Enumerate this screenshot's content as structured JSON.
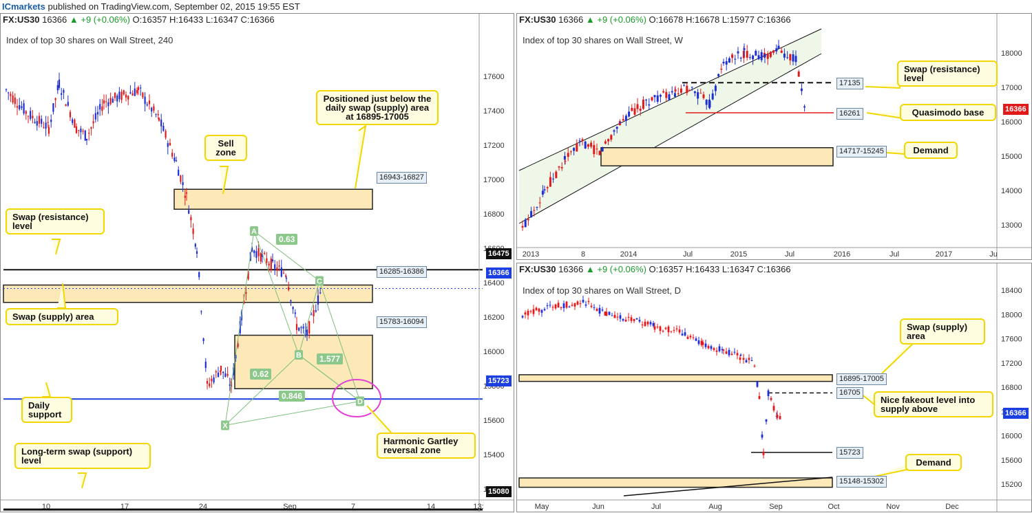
{
  "header": {
    "brand": "ICmarkets",
    "text": "published on TradingView.com, September 02, 2015 19:55 EST"
  },
  "colors": {
    "bull": "#1c2ed6",
    "bear": "#e01a1a",
    "zone_fill": "#fde8b7",
    "note_border": "#f2d600",
    "accent_blue": "#1b3fe0"
  },
  "panels": {
    "h4": {
      "symbol": "FX:US30",
      "price": "16366",
      "change": "▲ +9 (+0.06%)",
      "o": "O:16357",
      "h": "H:16433",
      "l": "L:16347",
      "c": "C:16366",
      "title": "Index of top 30 shares on Wall Street, 240",
      "y_ticks": [
        "17600",
        "17400",
        "17200",
        "17000",
        "16800",
        "16600",
        "16400",
        "16200",
        "16000",
        "15800",
        "15600",
        "15400",
        "15200"
      ],
      "x_ticks": [
        "10",
        "17",
        "24",
        "Sep",
        "7",
        "14",
        "13:"
      ],
      "level_tags": {
        "l16475": "16475",
        "l16366": "16366",
        "l15723": "15723",
        "l15080": "15080"
      },
      "zone_labels": {
        "z1": "16943-16827",
        "z2": "16285-16386",
        "z3": "15783-16094"
      },
      "pattern_points": [
        "X",
        "A",
        "B",
        "C",
        "D"
      ],
      "fib_labels": {
        "f1": "1.577",
        "f2": "0.62",
        "f3": "0.846",
        "f4": "0.63"
      },
      "notes": {
        "n1": "Positioned just below the daily swap (supply) area at 16895-17005",
        "n2": "Sell zone",
        "n3": "Swap (resistance) level",
        "n4": "Swap (supply) area",
        "n5": "Daily support",
        "n6": "Harmonic Gartley reversal zone",
        "n7": "Long-term swap (support) level"
      }
    },
    "weekly": {
      "symbol": "FX:US30",
      "price": "16366",
      "change": "▲ +9 (+0.06%)",
      "o": "O:16678",
      "h": "H:16678",
      "l": "L:15977",
      "c": "C:16366",
      "title": "Index of top 30 shares on Wall Street, W",
      "y_ticks": [
        "18000",
        "17000",
        "16000",
        "15000",
        "14000",
        "13000"
      ],
      "x_ticks": [
        "2013",
        "8",
        "2014",
        "Jul",
        "2015",
        "Jul",
        "2016",
        "Jul",
        "2017",
        "Ju"
      ],
      "level_tags": {
        "price": "16366"
      },
      "labels": {
        "l1": "17135",
        "l2": "16261",
        "l3": "14717-15245"
      },
      "notes": {
        "n1": "Swap (resistance) level",
        "n2": "Quasimodo base",
        "n3": "Demand"
      }
    },
    "daily": {
      "symbol": "FX:US30",
      "price": "16366",
      "change": "▲ +9 (+0.06%)",
      "o": "O:16357",
      "h": "H:16433",
      "l": "L:16347",
      "c": "C:16366",
      "title": "Index of top 30 shares on Wall Street, D",
      "y_ticks": [
        "18400",
        "18000",
        "17600",
        "17200",
        "16800",
        "16400",
        "16000",
        "15600",
        "15200"
      ],
      "x_ticks": [
        "May",
        "Jun",
        "Jul",
        "Aug",
        "Sep",
        "Oct",
        "Nov",
        "Dec"
      ],
      "level_tags": {
        "price": "16366"
      },
      "labels": {
        "l1": "16895-17005",
        "l2": "16705",
        "l3": "15723",
        "l4": "15148-15302"
      },
      "notes": {
        "n1": "Swap (supply) area",
        "n2": "Nice fakeout level into supply above",
        "n3": "Demand"
      }
    }
  }
}
